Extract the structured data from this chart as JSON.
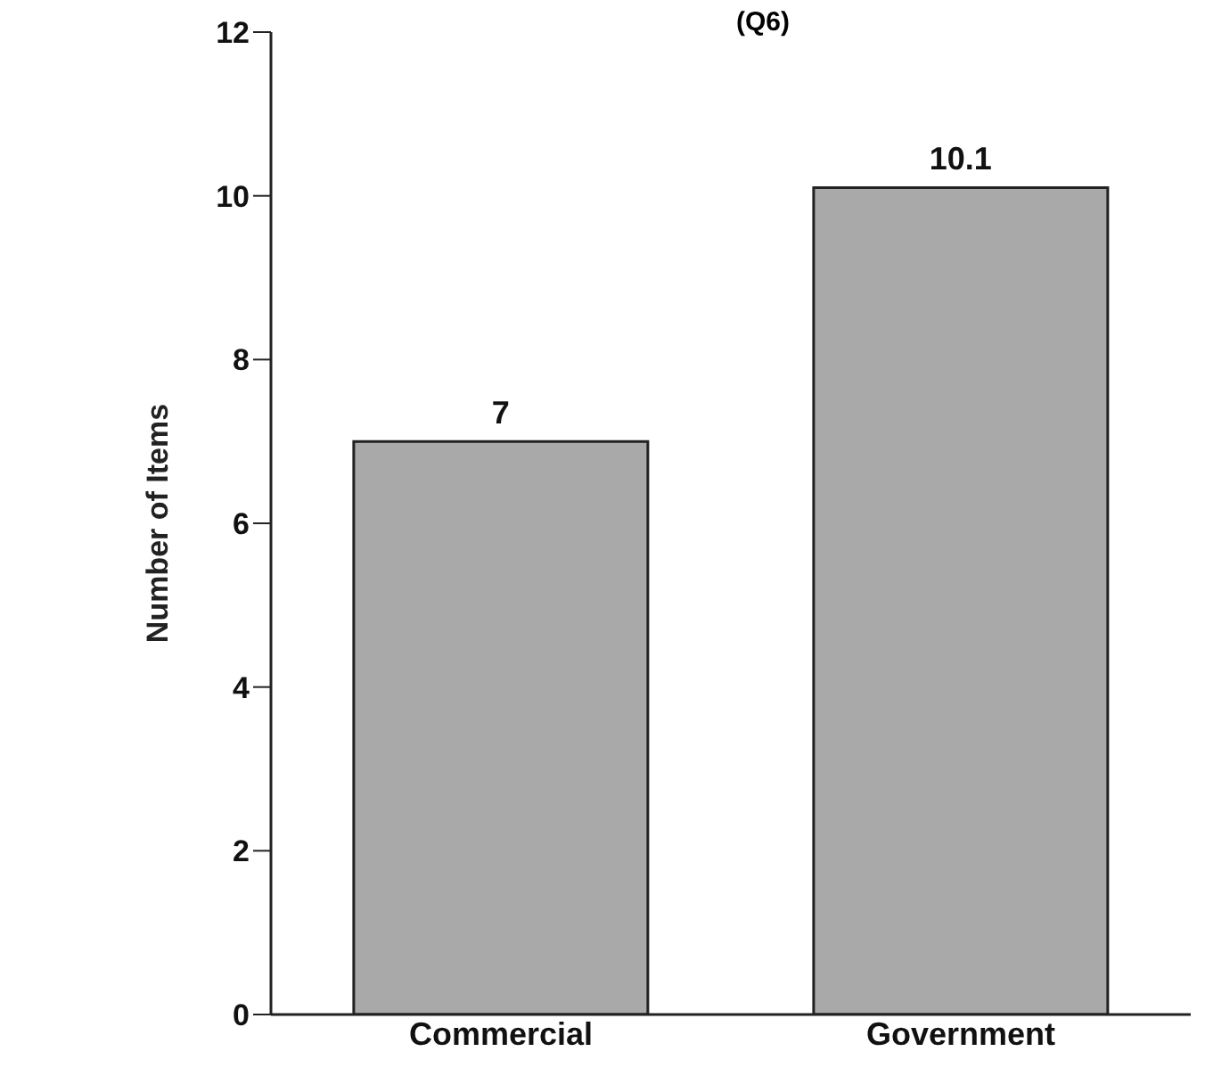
{
  "chart_data": {
    "type": "bar",
    "title": "(Q6)",
    "ylabel": "Number of Items",
    "categories": [
      "Commercial",
      "Government"
    ],
    "values": [
      7,
      10.1
    ],
    "color": "#a9a9a9",
    "ylim": [
      0,
      12
    ],
    "yticks": [
      0,
      2,
      4,
      6,
      8,
      10,
      12
    ],
    "data_labels": true,
    "grid": false
  }
}
